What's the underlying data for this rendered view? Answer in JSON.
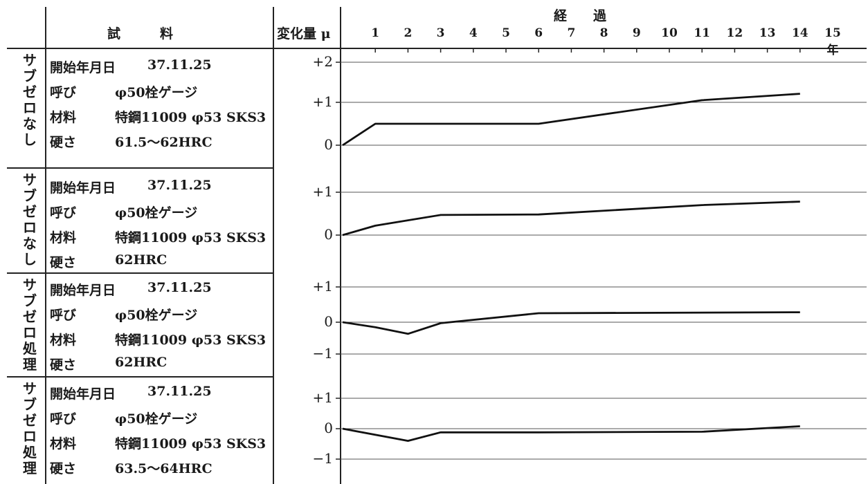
{
  "header": {
    "sample_label": "試　　　料",
    "change_label": "変化量 μ",
    "elapsed_label": "経　　過"
  },
  "x_ticks": [
    "1",
    "2",
    "3",
    "4",
    "5",
    "6",
    "7",
    "8",
    "9",
    "10",
    "11",
    "12",
    "13",
    "14",
    "15年"
  ],
  "rows": [
    {
      "vertical_label": "サブゼロなし",
      "start_label": "開始年月日",
      "start_value": "37.11.25",
      "name_label": "呼び",
      "name_value": "φ50栓ゲージ",
      "material_label": "材料",
      "material_value": "特鋼11009 φ53 SKS3",
      "hardness_label": "硬さ",
      "hardness_value": "61.5～62HRC",
      "y_ticks": [
        "+2",
        "+1",
        "0"
      ]
    },
    {
      "vertical_label": "サブゼロなし",
      "start_label": "開始年月日",
      "start_value": "37.11.25",
      "name_label": "呼び",
      "name_value": "φ50栓ゲージ",
      "material_label": "材料",
      "material_value": "特鋼11009 φ53 SKS3",
      "hardness_label": "硬さ",
      "hardness_value": "62HRC",
      "y_ticks": [
        "+1",
        "0"
      ]
    },
    {
      "vertical_label": "サブゼロ処理",
      "start_label": "開始年月日",
      "start_value": "37.11.25",
      "name_label": "呼び",
      "name_value": "φ50栓ゲージ",
      "material_label": "材料",
      "material_value": "特鋼11009 φ53 SKS3",
      "hardness_label": "硬さ",
      "hardness_value": "62HRC",
      "y_ticks": [
        "+1",
        "0",
        "−1"
      ]
    },
    {
      "vertical_label": "サブゼロ処理",
      "start_label": "開始年月日",
      "start_value": "37.11.25",
      "name_label": "呼び",
      "name_value": "φ50栓ゲージ",
      "material_label": "材料",
      "material_value": "特鋼11009 φ53 SKS3",
      "hardness_label": "硬さ",
      "hardness_value": "63.5～64HRC",
      "y_ticks": [
        "+1",
        "0",
        "−1"
      ]
    }
  ],
  "chart_data": [
    {
      "type": "line",
      "x": [
        0,
        1,
        6,
        11,
        14
      ],
      "series": [
        {
          "values": [
            0,
            0.5,
            0.5,
            1.05,
            1.2
          ]
        }
      ],
      "ylim": [
        -0.2,
        2.2
      ],
      "xlabel": "経過",
      "ylabel": "変化量 μ",
      "y_ticks": [
        2,
        1,
        0
      ],
      "grid": true
    },
    {
      "type": "line",
      "x": [
        0,
        1,
        3,
        6,
        11,
        14
      ],
      "series": [
        {
          "values": [
            0,
            0.22,
            0.47,
            0.48,
            0.7,
            0.78
          ]
        }
      ],
      "ylim": [
        -0.3,
        1.6
      ],
      "xlabel": "経過",
      "ylabel": "変化量 μ",
      "y_ticks": [
        1,
        0
      ],
      "grid": true
    },
    {
      "type": "line",
      "x": [
        0,
        1,
        2,
        3,
        6,
        14
      ],
      "series": [
        {
          "values": [
            0,
            -0.15,
            -0.35,
            -0.03,
            0.27,
            0.3
          ]
        }
      ],
      "ylim": [
        -1.5,
        1.5
      ],
      "xlabel": "経過",
      "ylabel": "変化量 μ",
      "y_ticks": [
        1,
        0,
        -1
      ],
      "grid": true
    },
    {
      "type": "line",
      "x": [
        0,
        2,
        3,
        6,
        11,
        14
      ],
      "series": [
        {
          "values": [
            0,
            -0.4,
            -0.12,
            -0.12,
            -0.1,
            0.08
          ]
        }
      ],
      "ylim": [
        -1.5,
        1.5
      ],
      "xlabel": "経過",
      "ylabel": "変化量 μ",
      "y_ticks": [
        1,
        0,
        -1
      ],
      "grid": true
    }
  ]
}
